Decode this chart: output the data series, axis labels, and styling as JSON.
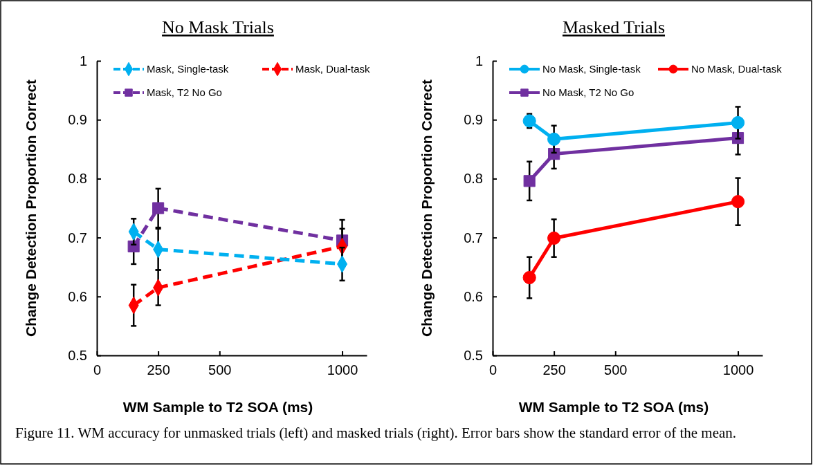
{
  "chart_data": [
    {
      "type": "line",
      "title": "No Mask Trials",
      "xlabel": "WM Sample to T2 SOA (ms)",
      "ylabel": "Change Detection Proportion Correct",
      "x": [
        150,
        250,
        1000
      ],
      "xlim": [
        0,
        1100
      ],
      "xticks": [
        0,
        250,
        500,
        1000
      ],
      "ylim": [
        0.5,
        1
      ],
      "yticks": [
        0.5,
        0.6,
        0.7,
        0.8,
        0.9,
        1
      ],
      "legend": "top",
      "line_style": "dashed",
      "series": [
        {
          "name": "Mask, Single-task",
          "color": "#00b0f0",
          "marker": "diamond",
          "values": [
            0.71,
            0.68,
            0.655
          ],
          "errors": [
            0.022,
            0.035,
            0.028
          ]
        },
        {
          "name": "Mask, Dual-task",
          "color": "#ff0000",
          "marker": "diamond",
          "values": [
            0.585,
            0.615,
            0.685
          ],
          "errors": [
            0.035,
            0.03,
            0.03
          ]
        },
        {
          "name": "Mask, T2 No Go",
          "color": "#7030a0",
          "marker": "square",
          "values": [
            0.685,
            0.75,
            0.695
          ],
          "errors": [
            0.03,
            0.033,
            0.035
          ]
        }
      ]
    },
    {
      "type": "line",
      "title": "Masked Trials",
      "xlabel": "WM Sample to T2 SOA (ms)",
      "ylabel": "Change Detection Proportion Correct",
      "x": [
        150,
        250,
        1000
      ],
      "xlim": [
        0,
        1100
      ],
      "xticks": [
        0,
        250,
        500,
        1000
      ],
      "ylim": [
        0.5,
        1
      ],
      "yticks": [
        0.5,
        0.6,
        0.7,
        0.8,
        0.9,
        1
      ],
      "legend": "top",
      "line_style": "solid",
      "annotations": [
        "Figure 11. WM accuracy for unmasked trials (left) and masked trials (right). Error bars show the standard error of the mean."
      ],
      "series": [
        {
          "name": "No Mask, Single-task",
          "color": "#00b0f0",
          "marker": "circle",
          "values": [
            0.898,
            0.867,
            0.895
          ],
          "errors": [
            0.012,
            0.023,
            0.027
          ]
        },
        {
          "name": "No Mask, Dual-task",
          "color": "#ff0000",
          "marker": "circle",
          "values": [
            0.632,
            0.699,
            0.761
          ],
          "errors": [
            0.035,
            0.032,
            0.04
          ]
        },
        {
          "name": "No Mask, T2 No Go",
          "color": "#7030a0",
          "marker": "square",
          "values": [
            0.796,
            0.842,
            0.869
          ],
          "errors": [
            0.033,
            0.025,
            0.028
          ]
        }
      ]
    }
  ]
}
